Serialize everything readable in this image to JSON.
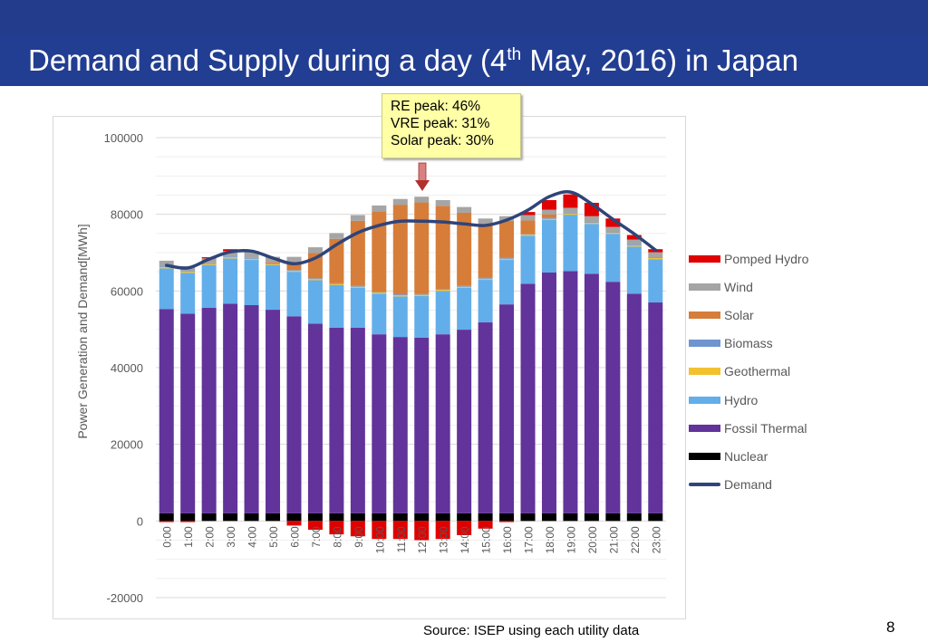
{
  "header": {
    "title_pre": "Demand and Supply during a day (4",
    "title_sup": "th",
    "title_post": " May, 2016) in Japan"
  },
  "callout": {
    "lines": [
      "RE peak: 46%",
      "VRE peak: 31%",
      "Solar peak: 30%"
    ]
  },
  "footer": {
    "source": "Source: ISEP using each utility data",
    "page_number": "8"
  },
  "chart_data": {
    "type": "bar",
    "stacked": true,
    "ylabel": "Power Generation and Demand[MWh]",
    "xlabel": "",
    "ylim": [
      -20000,
      100000
    ],
    "yticks": [
      "-20000",
      "0",
      "20000",
      "40000",
      "60000",
      "80000",
      "100000"
    ],
    "grid": true,
    "legend_position": "right",
    "categories": [
      "0:00",
      "1:00",
      "2:00",
      "3:00",
      "4:00",
      "5:00",
      "6:00",
      "7:00",
      "8:00",
      "9:00",
      "10:00",
      "11:00",
      "12:00",
      "13:00",
      "14:00",
      "15:00",
      "16:00",
      "17:00",
      "18:00",
      "19:00",
      "20:00",
      "21:00",
      "22:00",
      "23:00"
    ],
    "series": [
      {
        "name": "Nuclear",
        "color": "#000000",
        "values": [
          2000,
          2000,
          2000,
          2000,
          2000,
          2000,
          2000,
          2000,
          2000,
          2000,
          2000,
          2000,
          2000,
          2000,
          2000,
          2000,
          2000,
          2000,
          2000,
          2000,
          2000,
          2000,
          2000,
          2000
        ]
      },
      {
        "name": "Fossil Thermal",
        "color": "#62339a",
        "values": [
          53300,
          52100,
          53600,
          54700,
          54300,
          53100,
          51400,
          49500,
          48400,
          48400,
          46700,
          46000,
          45800,
          46700,
          47900,
          49800,
          54500,
          59900,
          62800,
          63200,
          62500,
          60400,
          57300,
          55000
        ]
      },
      {
        "name": "Hydro",
        "color": "#62aeea",
        "values": [
          10600,
          10600,
          11100,
          11800,
          11800,
          11600,
          11600,
          11300,
          11100,
          10400,
          10600,
          10600,
          10900,
          11300,
          10900,
          11100,
          11600,
          12500,
          13700,
          14700,
          13000,
          12500,
          12300,
          11300
        ]
      },
      {
        "name": "Geothermal",
        "color": "#f2c12e",
        "values": [
          300,
          300,
          300,
          300,
          300,
          300,
          300,
          300,
          300,
          300,
          300,
          300,
          300,
          300,
          300,
          300,
          300,
          300,
          300,
          300,
          300,
          300,
          300,
          300
        ]
      },
      {
        "name": "Biomass",
        "color": "#6f95cf",
        "values": [
          200,
          200,
          200,
          200,
          200,
          200,
          200,
          200,
          200,
          200,
          200,
          200,
          200,
          200,
          200,
          200,
          200,
          200,
          200,
          200,
          200,
          200,
          200,
          200
        ]
      },
      {
        "name": "Solar",
        "color": "#d67d3a",
        "values": [
          0,
          0,
          0,
          0,
          0,
          300,
          2000,
          6600,
          11600,
          17000,
          21000,
          23400,
          23900,
          21700,
          19100,
          14000,
          9700,
          3500,
          1000,
          0,
          0,
          0,
          0,
          0
        ]
      },
      {
        "name": "Wind",
        "color": "#a5a5a5",
        "values": [
          1500,
          1300,
          1300,
          1400,
          1500,
          1400,
          1400,
          1500,
          1500,
          1500,
          1500,
          1500,
          1500,
          1500,
          1500,
          1500,
          1200,
          1400,
          1200,
          1300,
          1500,
          1300,
          1300,
          1300
        ]
      },
      {
        "name": "Pomped Hydro",
        "color": "#e00000",
        "values": [
          -300,
          -300,
          300,
          500,
          300,
          0,
          -1200,
          -2300,
          -3500,
          -4000,
          -4700,
          -4700,
          -5000,
          -4700,
          -3700,
          -2000,
          -300,
          800,
          2500,
          3500,
          3500,
          2200,
          1200,
          800
        ]
      }
    ],
    "demand": {
      "name": "Demand",
      "color": "#2f4479",
      "values": [
        66700,
        66000,
        68300,
        70200,
        70400,
        68600,
        67100,
        68600,
        72100,
        75200,
        77100,
        78200,
        78200,
        78000,
        77500,
        77100,
        78500,
        81100,
        84600,
        85800,
        82700,
        78700,
        74900,
        70700
      ]
    }
  }
}
